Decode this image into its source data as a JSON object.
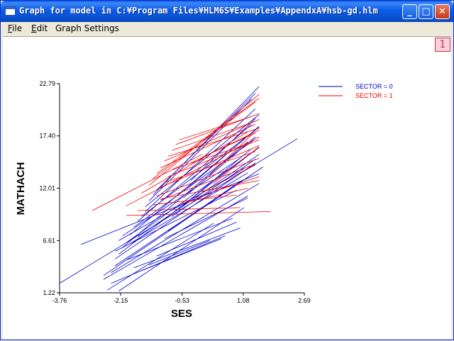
{
  "window": {
    "title": "Graph for model in C:¥Program Files¥HLM6S¥Examples¥AppendxA¥hsb-gd.hlm",
    "minimize_glyph": "_",
    "maximize_glyph": "□",
    "close_glyph": "✕"
  },
  "menu": {
    "file": {
      "accel": "F",
      "rest": "ile"
    },
    "edit": {
      "accel": "E",
      "rest": "dit"
    },
    "graph_settings": {
      "accel": "",
      "rest": "Graph Settings"
    }
  },
  "corner_button": {
    "label": "1",
    "icon": "number-one-icon"
  },
  "colors": {
    "sector0": "#0000cc",
    "sector1": "#ee0000",
    "axis": "#000000"
  },
  "chart_data": {
    "type": "line",
    "title": "",
    "xlabel": "SES",
    "ylabel": "MATHACH",
    "xlim": [
      -3.76,
      2.69
    ],
    "ylim": [
      1.22,
      22.79
    ],
    "xticks": [
      "-3.76",
      "-2.15",
      "-0.53",
      "1.08",
      "2.69"
    ],
    "yticks": [
      "1.22",
      "6.61",
      "12.01",
      "17.40",
      "22.79"
    ],
    "legend": {
      "placement": "top-right",
      "entries": [
        {
          "label": "SECTOR = 0",
          "color": "#0000cc"
        },
        {
          "label": "SECTOR = 1",
          "color": "#ee0000"
        }
      ]
    },
    "series": [
      {
        "name": "SECTOR = 0",
        "lines": [
          [
            -3.76,
            2.2,
            2.5,
            17.1
          ],
          [
            -3.2,
            6.2,
            1.5,
            13.5
          ],
          [
            -2.6,
            3.0,
            1.6,
            14.2
          ],
          [
            -2.5,
            1.5,
            0.3,
            8.4
          ],
          [
            -2.2,
            1.4,
            1.1,
            10.0
          ],
          [
            -2.6,
            2.6,
            1.2,
            11.2
          ],
          [
            -2.4,
            3.3,
            1.5,
            12.5
          ],
          [
            -2.3,
            4.0,
            1.3,
            13.4
          ],
          [
            -2.3,
            4.7,
            1.4,
            14.6
          ],
          [
            -2.2,
            5.2,
            1.3,
            15.7
          ],
          [
            -2.1,
            5.9,
            1.2,
            16.8
          ],
          [
            -2.0,
            6.4,
            1.5,
            16.2
          ],
          [
            -1.9,
            7.2,
            1.3,
            17.7
          ],
          [
            -1.8,
            8.0,
            1.4,
            17.1
          ],
          [
            -1.7,
            8.6,
            1.3,
            18.6
          ],
          [
            -1.6,
            9.1,
            1.5,
            18.3
          ],
          [
            -1.5,
            9.6,
            1.4,
            20.2
          ],
          [
            -1.5,
            10.1,
            1.5,
            19.6
          ],
          [
            -1.4,
            10.7,
            1.3,
            21.2
          ],
          [
            -1.3,
            11.3,
            1.5,
            22.5
          ],
          [
            -1.2,
            11.8,
            1.4,
            21.8
          ],
          [
            -2.0,
            4.6,
            0.8,
            8.9
          ],
          [
            -1.8,
            3.8,
            1.0,
            7.9
          ],
          [
            -1.6,
            3.5,
            0.5,
            6.8
          ],
          [
            -1.4,
            4.1,
            0.2,
            6.6
          ],
          [
            -1.2,
            5.0,
            0.9,
            8.5
          ],
          [
            -1.0,
            6.8,
            1.2,
            11.0
          ],
          [
            -0.9,
            7.6,
            1.0,
            12.7
          ],
          [
            -0.8,
            9.1,
            1.4,
            15.0
          ],
          [
            -0.6,
            9.9,
            1.3,
            16.1
          ],
          [
            -0.5,
            11.0,
            1.4,
            17.3
          ],
          [
            -0.4,
            12.0,
            1.5,
            18.4
          ],
          [
            -0.3,
            12.8,
            1.4,
            19.2
          ],
          [
            -2.4,
            2.2,
            0.6,
            7.1
          ],
          [
            -2.3,
            5.5,
            0.9,
            11.8
          ],
          [
            -2.2,
            6.6,
            1.1,
            14.0
          ],
          [
            -2.1,
            7.1,
            1.0,
            15.1
          ],
          [
            -1.9,
            6.3,
            1.2,
            13.6
          ],
          [
            -1.7,
            7.0,
            1.5,
            15.5
          ]
        ]
      },
      {
        "name": "SECTOR = 1",
        "lines": [
          [
            -2.9,
            9.7,
            0.0,
            15.5
          ],
          [
            -2.0,
            10.2,
            1.5,
            17.3
          ],
          [
            -1.6,
            11.5,
            1.2,
            17.8
          ],
          [
            -1.4,
            12.3,
            1.5,
            21.7
          ],
          [
            -1.3,
            13.0,
            1.4,
            20.9
          ],
          [
            -1.2,
            13.5,
            1.5,
            21.3
          ],
          [
            -1.1,
            14.1,
            1.4,
            18.6
          ],
          [
            -1.0,
            14.8,
            1.5,
            19.1
          ],
          [
            -0.9,
            15.3,
            1.5,
            18.2
          ],
          [
            -0.8,
            15.9,
            1.4,
            18.9
          ],
          [
            -0.7,
            16.5,
            1.5,
            19.7
          ],
          [
            -0.6,
            17.0,
            1.3,
            19.4
          ],
          [
            -1.1,
            12.1,
            1.5,
            16.4
          ],
          [
            -1.0,
            12.6,
            1.4,
            15.8
          ],
          [
            -0.9,
            13.2,
            1.5,
            17.0
          ],
          [
            -0.8,
            13.9,
            1.2,
            16.6
          ],
          [
            -1.2,
            11.2,
            1.5,
            15.1
          ],
          [
            -1.1,
            10.8,
            1.4,
            14.5
          ],
          [
            -2.0,
            9.2,
            1.8,
            9.6
          ],
          [
            -1.7,
            9.7,
            1.0,
            10.0
          ],
          [
            -1.3,
            10.3,
            0.9,
            11.3
          ],
          [
            -1.1,
            10.9,
            1.5,
            12.8
          ],
          [
            -0.6,
            10.4,
            1.2,
            12.0
          ],
          [
            -0.2,
            11.0,
            1.5,
            13.2
          ],
          [
            0.0,
            11.6,
            1.4,
            14.4
          ],
          [
            0.3,
            12.5,
            1.5,
            16.3
          ],
          [
            0.2,
            13.4,
            1.3,
            17.5
          ],
          [
            -0.3,
            14.6,
            1.5,
            18.0
          ],
          [
            0.0,
            15.2,
            1.4,
            17.7
          ]
        ]
      }
    ]
  }
}
